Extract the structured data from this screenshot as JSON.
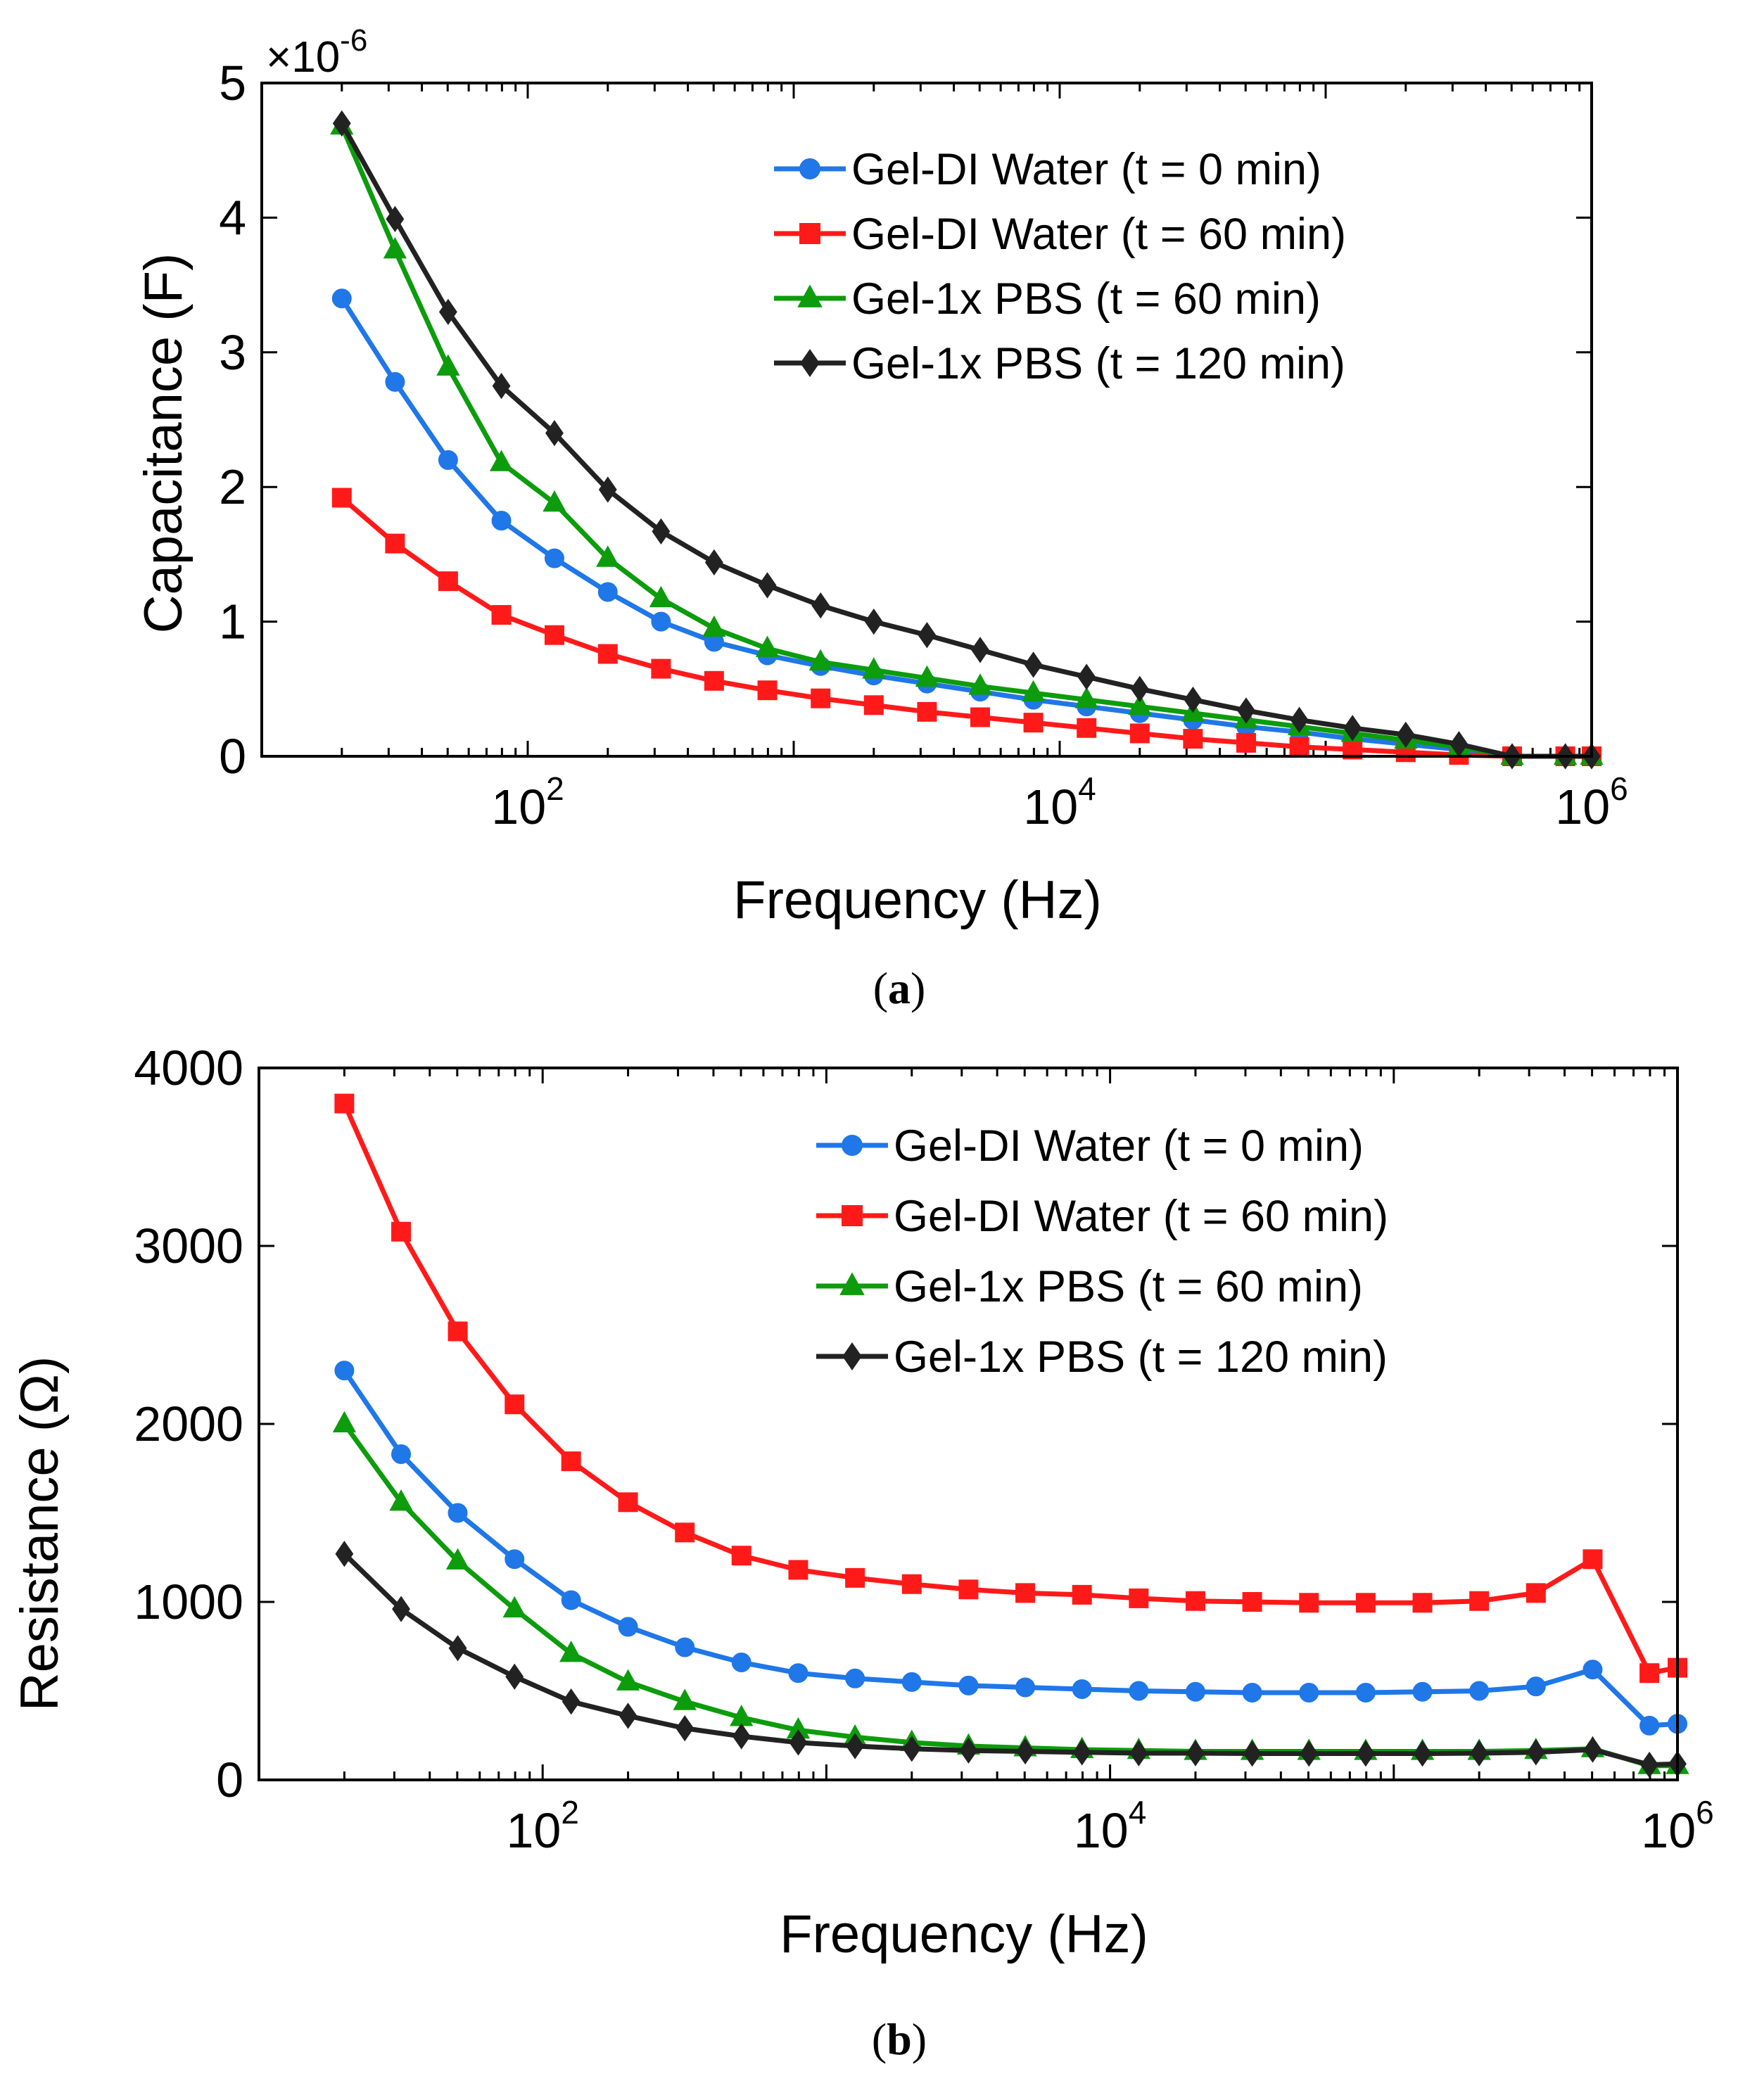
{
  "chart_data": [
    {
      "panel": "a",
      "type": "line",
      "caption": {
        "open": "(",
        "letter": "a",
        "close": ")"
      },
      "xlabel": "Frequency (Hz)",
      "ylabel": "Capacitance (F)",
      "xscale": "log",
      "xlim": [
        10,
        1000000
      ],
      "ylim": [
        0,
        5
      ],
      "y_multiplier_prefix": "×10",
      "y_multiplier_exp": "-6",
      "x_ticks": [
        {
          "base": "10",
          "exp": "2",
          "value": 100
        },
        {
          "base": "10",
          "exp": "4",
          "value": 10000
        },
        {
          "base": "10",
          "exp": "6",
          "value": 1000000
        }
      ],
      "y_ticks": [
        {
          "label": "0",
          "value": 0
        },
        {
          "label": "1",
          "value": 1
        },
        {
          "label": "2",
          "value": 2
        },
        {
          "label": "3",
          "value": 3
        },
        {
          "label": "4",
          "value": 4
        },
        {
          "label": "5",
          "value": 5
        }
      ],
      "legend_position": "top-right",
      "x": [
        20,
        31.7,
        50.2,
        79.6,
        126,
        200,
        317,
        502,
        796,
        1262,
        2000,
        3170,
        5024,
        7962,
        12620,
        20000,
        31698,
        50238,
        79621,
        126191,
        200000,
        316979,
        502377,
        796214,
        1000000
      ],
      "series": [
        {
          "name": "Gel-DI Water (t = 0 min)",
          "color": "#1f77e8",
          "marker": "circle",
          "values": [
            3.4,
            2.78,
            2.2,
            1.75,
            1.47,
            1.22,
            1.0,
            0.85,
            0.75,
            0.67,
            0.6,
            0.54,
            0.48,
            0.42,
            0.37,
            0.32,
            0.27,
            0.22,
            0.18,
            0.13,
            0.09,
            0.05,
            0.0,
            0.0,
            0.0
          ]
        },
        {
          "name": "Gel-DI Water (t = 60 min)",
          "color": "#ff1a1a",
          "marker": "square",
          "values": [
            1.92,
            1.58,
            1.3,
            1.05,
            0.9,
            0.76,
            0.65,
            0.56,
            0.49,
            0.43,
            0.38,
            0.33,
            0.29,
            0.25,
            0.21,
            0.17,
            0.13,
            0.1,
            0.07,
            0.05,
            0.03,
            0.01,
            0.0,
            0.0,
            0.0
          ]
        },
        {
          "name": "Gel-1x PBS (t = 60 min)",
          "color": "#0c9c0c",
          "marker": "triangle",
          "values": [
            4.68,
            3.76,
            2.89,
            2.18,
            1.88,
            1.47,
            1.17,
            0.95,
            0.8,
            0.7,
            0.64,
            0.58,
            0.52,
            0.47,
            0.42,
            0.37,
            0.32,
            0.27,
            0.22,
            0.17,
            0.12,
            0.07,
            0.0,
            0.0,
            0.0
          ]
        },
        {
          "name": "Gel-1x PBS (t = 120 min)",
          "color": "#222222",
          "marker": "diamond",
          "values": [
            4.7,
            3.99,
            3.3,
            2.75,
            2.4,
            1.98,
            1.67,
            1.44,
            1.27,
            1.12,
            1.0,
            0.9,
            0.79,
            0.68,
            0.59,
            0.5,
            0.42,
            0.34,
            0.27,
            0.21,
            0.16,
            0.09,
            0.0,
            0.0,
            0.0
          ]
        }
      ]
    },
    {
      "panel": "b",
      "type": "line",
      "caption": {
        "open": "(",
        "letter": "b",
        "close": ")"
      },
      "xlabel": "Frequency (Hz)",
      "ylabel": "Resistance (Ω)",
      "xscale": "log",
      "xlim": [
        10,
        1000000
      ],
      "ylim": [
        0,
        4000
      ],
      "x_ticks": [
        {
          "base": "10",
          "exp": "2",
          "value": 100
        },
        {
          "base": "10",
          "exp": "4",
          "value": 10000
        },
        {
          "base": "10",
          "exp": "6",
          "value": 1000000
        }
      ],
      "y_ticks": [
        {
          "label": "0",
          "value": 0
        },
        {
          "label": "1000",
          "value": 1000
        },
        {
          "label": "2000",
          "value": 2000
        },
        {
          "label": "3000",
          "value": 3000
        },
        {
          "label": "4000",
          "value": 4000
        }
      ],
      "legend_position": "top-right",
      "x": [
        20,
        31.7,
        50.2,
        79.6,
        126,
        200,
        317,
        502,
        796,
        1262,
        2000,
        3170,
        5024,
        7962,
        12620,
        20000,
        31698,
        50238,
        79621,
        126191,
        200000,
        316979,
        502377,
        796214,
        1000000
      ],
      "series": [
        {
          "name": "Gel-DI Water (t = 0 min)",
          "color": "#1f77e8",
          "marker": "circle",
          "values": [
            2300,
            1830,
            1500,
            1240,
            1010,
            860,
            745,
            660,
            600,
            570,
            550,
            530,
            520,
            510,
            500,
            495,
            490,
            490,
            490,
            495,
            500,
            525,
            620,
            305,
            315
          ]
        },
        {
          "name": "Gel-DI Water (t = 60 min)",
          "color": "#ff1a1a",
          "marker": "square",
          "values": [
            3800,
            3080,
            2520,
            2110,
            1790,
            1560,
            1390,
            1260,
            1180,
            1135,
            1100,
            1070,
            1050,
            1040,
            1020,
            1005,
            1000,
            995,
            995,
            995,
            1005,
            1050,
            1240,
            600,
            630
          ]
        },
        {
          "name": "Gel-1x PBS (t = 60 min)",
          "color": "#0c9c0c",
          "marker": "triangle",
          "values": [
            2000,
            1560,
            1230,
            960,
            710,
            550,
            440,
            350,
            280,
            240,
            210,
            190,
            180,
            170,
            165,
            160,
            160,
            160,
            160,
            160,
            160,
            165,
            175,
            80,
            80
          ]
        },
        {
          "name": "Gel-1x PBS (t = 120 min)",
          "color": "#222222",
          "marker": "diamond",
          "values": [
            1270,
            960,
            740,
            580,
            440,
            360,
            290,
            245,
            210,
            190,
            175,
            165,
            160,
            155,
            150,
            150,
            148,
            148,
            148,
            148,
            150,
            155,
            170,
            85,
            90
          ]
        }
      ]
    }
  ]
}
